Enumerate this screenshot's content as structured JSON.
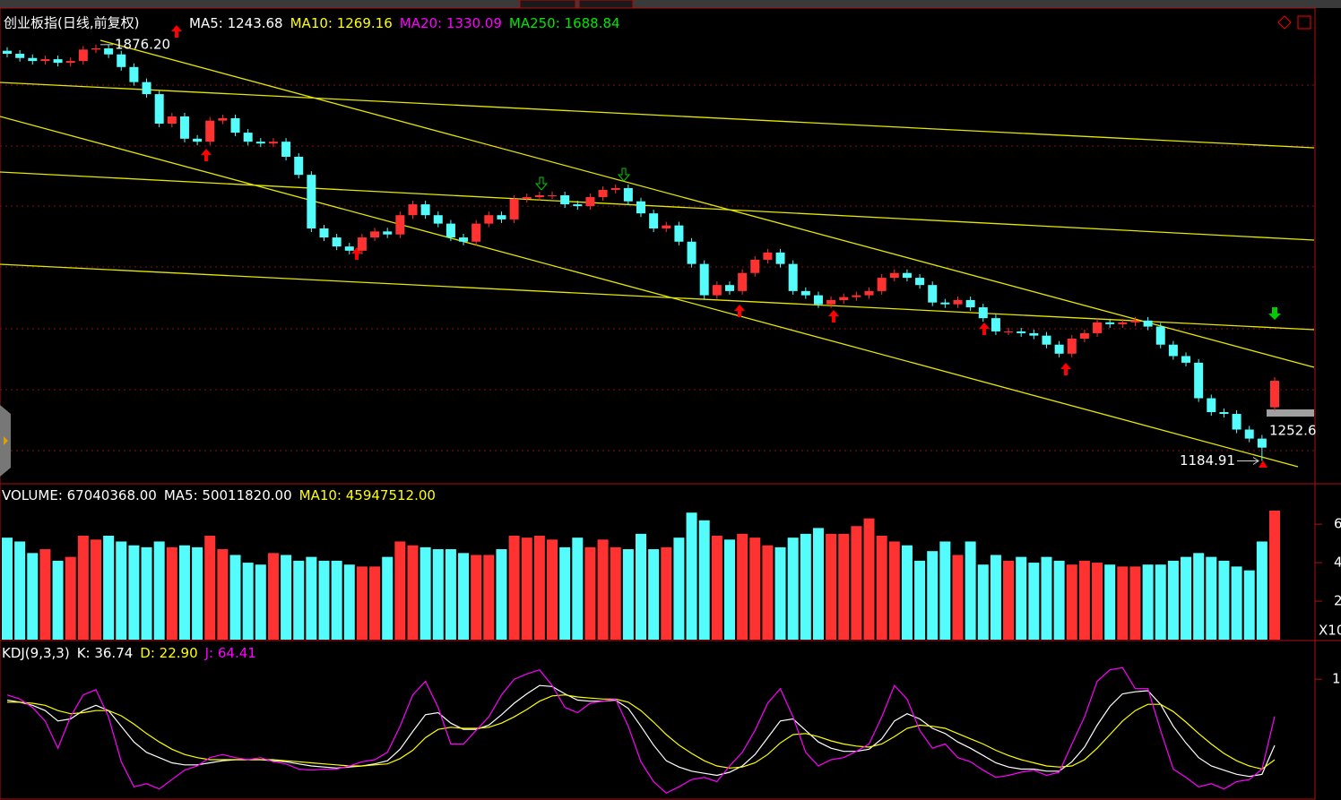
{
  "chart_data": [
    {
      "type": "candlestick",
      "title": "创业板指(日线,前复权)",
      "indicators": [
        {
          "label": "MA5: 1243.68",
          "color": "#ffffff"
        },
        {
          "label": "MA10: 1269.16",
          "color": "#ffff00"
        },
        {
          "label": "MA20: 1330.09",
          "color": "#ff00ff"
        },
        {
          "label": "MA250: 1688.84",
          "color": "#00e600"
        }
      ],
      "up_color": "#ff3232",
      "down_color": "#54fcfc",
      "ylim": [
        1147,
        1928
      ],
      "open": [
        1866,
        1861,
        1854,
        1849,
        1852,
        1846,
        1849,
        1868,
        1870,
        1860,
        1839,
        1814,
        1794,
        1745,
        1757,
        1720,
        1715,
        1750,
        1754,
        1730,
        1715,
        1712,
        1715,
        1690,
        1660,
        1571,
        1556,
        1541,
        1534,
        1556,
        1566,
        1561,
        1593,
        1611,
        1593,
        1579,
        1556,
        1549,
        1579,
        1593,
        1586,
        1620,
        1623,
        1626,
        1626,
        1611,
        1608,
        1623,
        1635,
        1638,
        1616,
        1596,
        1571,
        1576,
        1549,
        1512,
        1460,
        1477,
        1467,
        1497,
        1519,
        1531,
        1512,
        1467,
        1460,
        1445,
        1452,
        1457,
        1460,
        1467,
        1489,
        1497,
        1489,
        1477,
        1448,
        1445,
        1452,
        1440,
        1422,
        1400,
        1400,
        1397,
        1393,
        1378,
        1363,
        1388,
        1397,
        1415,
        1412,
        1415,
        1418,
        1408,
        1378,
        1359,
        1348,
        1289,
        1266,
        1263,
        1237,
        1222,
        1274
      ],
      "high": [
        1872,
        1867,
        1860,
        1858,
        1858,
        1855,
        1874,
        1876.2,
        1876,
        1866,
        1845,
        1820,
        1800,
        1763,
        1763,
        1726,
        1756,
        1760,
        1760,
        1736,
        1721,
        1721,
        1721,
        1696,
        1666,
        1577,
        1562,
        1547,
        1562,
        1572,
        1572,
        1599,
        1617,
        1617,
        1599,
        1585,
        1562,
        1585,
        1599,
        1599,
        1626,
        1629,
        1632,
        1632,
        1632,
        1617,
        1629,
        1641,
        1644,
        1644,
        1622,
        1602,
        1582,
        1582,
        1555,
        1518,
        1483,
        1483,
        1503,
        1525,
        1537,
        1537,
        1518,
        1473,
        1466,
        1458,
        1463,
        1466,
        1473,
        1495,
        1503,
        1503,
        1495,
        1483,
        1454,
        1458,
        1458,
        1446,
        1428,
        1406,
        1406,
        1403,
        1399,
        1384,
        1394,
        1403,
        1421,
        1421,
        1421,
        1424,
        1424,
        1414,
        1384,
        1365,
        1354,
        1295,
        1272,
        1269,
        1243,
        1228,
        1324
      ],
      "low": [
        1855,
        1848,
        1843,
        1843,
        1840,
        1840,
        1843,
        1862,
        1854,
        1833,
        1808,
        1788,
        1739,
        1739,
        1714,
        1709,
        1709,
        1744,
        1724,
        1709,
        1706,
        1706,
        1684,
        1654,
        1565,
        1550,
        1535,
        1528,
        1528,
        1550,
        1555,
        1555,
        1587,
        1587,
        1573,
        1550,
        1543,
        1543,
        1573,
        1580,
        1580,
        1614,
        1617,
        1620,
        1605,
        1602,
        1602,
        1617,
        1629,
        1610,
        1590,
        1565,
        1565,
        1543,
        1506,
        1454,
        1454,
        1461,
        1461,
        1491,
        1513,
        1506,
        1461,
        1454,
        1439,
        1439,
        1446,
        1451,
        1454,
        1461,
        1483,
        1483,
        1471,
        1442,
        1439,
        1439,
        1434,
        1416,
        1394,
        1394,
        1391,
        1387,
        1372,
        1357,
        1357,
        1382,
        1391,
        1406,
        1406,
        1409,
        1402,
        1372,
        1353,
        1342,
        1283,
        1260,
        1257,
        1231,
        1216,
        1184.91,
        1268
      ],
      "close": [
        1861,
        1854,
        1849,
        1852,
        1846,
        1849,
        1868,
        1870,
        1860,
        1839,
        1814,
        1794,
        1745,
        1757,
        1720,
        1715,
        1750,
        1754,
        1730,
        1715,
        1712,
        1715,
        1690,
        1660,
        1571,
        1556,
        1541,
        1534,
        1556,
        1566,
        1561,
        1593,
        1611,
        1593,
        1579,
        1556,
        1549,
        1579,
        1593,
        1586,
        1620,
        1623,
        1626,
        1626,
        1611,
        1608,
        1623,
        1635,
        1638,
        1616,
        1596,
        1571,
        1576,
        1549,
        1512,
        1460,
        1477,
        1467,
        1497,
        1519,
        1531,
        1512,
        1467,
        1460,
        1445,
        1452,
        1457,
        1460,
        1467,
        1489,
        1497,
        1489,
        1477,
        1448,
        1445,
        1452,
        1440,
        1422,
        1400,
        1400,
        1397,
        1393,
        1378,
        1363,
        1388,
        1397,
        1415,
        1412,
        1415,
        1418,
        1408,
        1378,
        1359,
        1348,
        1289,
        1266,
        1263,
        1237,
        1222,
        1207,
        1318
      ],
      "annotations": [
        {
          "value": 1876.2,
          "label": "1876.20"
        },
        {
          "value": 1184.91,
          "label": "1184.91"
        },
        {
          "value": 1252.6,
          "label": "1252.6"
        }
      ]
    },
    {
      "type": "bar",
      "indicators": [
        {
          "label": "VOLUME: 67040368.00",
          "color": "#ffffff"
        },
        {
          "label": "MA5: 50011820.00",
          "color": "#ffffff"
        },
        {
          "label": "MA10: 45947512.00",
          "color": "#ffff00"
        }
      ],
      "values": [
        5.3,
        5.1,
        4.5,
        4.7,
        4.1,
        4.3,
        5.4,
        5.2,
        5.4,
        5.1,
        4.9,
        4.8,
        5.1,
        4.8,
        4.9,
        4.8,
        5.4,
        4.7,
        4.4,
        4.0,
        3.9,
        4.5,
        4.4,
        4.1,
        4.3,
        4.1,
        4.1,
        3.9,
        3.8,
        3.8,
        4.3,
        5.1,
        4.9,
        4.8,
        4.7,
        4.7,
        4.5,
        4.4,
        4.4,
        4.7,
        5.4,
        5.3,
        5.4,
        5.2,
        4.8,
        5.3,
        4.8,
        5.2,
        4.8,
        4.7,
        5.5,
        4.7,
        4.8,
        5.3,
        6.6,
        6.2,
        5.4,
        5.2,
        5.5,
        5.3,
        4.9,
        4.8,
        5.3,
        5.5,
        5.8,
        5.5,
        5.5,
        5.9,
        6.3,
        5.4,
        5.1,
        4.9,
        4.1,
        4.6,
        5.1,
        4.4,
        5.1,
        3.9,
        4.4,
        4.1,
        4.3,
        4.0,
        4.3,
        4.1,
        3.9,
        4.1,
        4.0,
        3.9,
        3.8,
        3.8,
        3.9,
        3.9,
        4.1,
        4.3,
        4.5,
        4.3,
        4.1,
        3.8,
        3.6,
        5.1,
        6.704
      ],
      "ylim": [
        0,
        8.1
      ],
      "yticks": [
        2,
        4,
        6
      ],
      "unit_label": "X10"
    },
    {
      "type": "line",
      "indicators": [
        {
          "label": "KDJ(9,3,3)",
          "color": "#ffffff"
        },
        {
          "label": "K: 36.74",
          "color": "#ffffff"
        },
        {
          "label": "D: 22.90",
          "color": "#ffff00"
        },
        {
          "label": "J: 64.41",
          "color": "#ff00ff"
        }
      ],
      "ylim": [
        -13,
        137
      ],
      "yticks": [
        {
          "value": 100,
          "label": "1"
        }
      ],
      "series": [
        {
          "name": "K",
          "color": "#ffffff",
          "values": [
            80,
            78,
            75,
            70,
            60,
            62,
            70,
            75,
            70,
            55,
            40,
            30,
            25,
            20,
            18,
            18,
            20,
            22,
            23,
            23,
            23,
            22,
            21,
            19,
            17,
            16,
            15,
            16,
            17,
            19,
            22,
            33,
            50,
            66,
            68,
            58,
            52,
            52,
            56,
            66,
            77,
            86,
            94,
            93,
            86,
            80,
            79,
            79,
            80,
            72,
            55,
            37,
            22,
            16,
            12,
            10,
            8,
            11,
            17,
            28,
            44,
            60,
            62,
            51,
            40,
            34,
            31,
            31,
            33,
            43,
            60,
            67,
            62,
            53,
            48,
            40,
            34,
            27,
            20,
            16,
            14,
            14,
            12,
            12,
            21,
            35,
            56,
            74,
            86,
            88,
            89,
            76,
            55,
            39,
            25,
            17,
            13,
            9,
            7,
            9,
            36.74
          ]
        },
        {
          "name": "D",
          "color": "#ffff00",
          "values": [
            78,
            78,
            77,
            75,
            70,
            67,
            68,
            70,
            70,
            65,
            57,
            48,
            40,
            33,
            28,
            25,
            23,
            23,
            23,
            23,
            23,
            23,
            22,
            21,
            20,
            19,
            18,
            17,
            17,
            18,
            19,
            24,
            32,
            44,
            52,
            54,
            53,
            53,
            54,
            58,
            64,
            71,
            79,
            84,
            85,
            83,
            82,
            81,
            81,
            78,
            70,
            59,
            47,
            37,
            29,
            22,
            17,
            15,
            16,
            20,
            28,
            39,
            47,
            48,
            45,
            41,
            38,
            36,
            35,
            38,
            45,
            53,
            56,
            55,
            53,
            48,
            43,
            38,
            32,
            27,
            23,
            20,
            17,
            16,
            17,
            23,
            34,
            47,
            60,
            70,
            76,
            76,
            69,
            59,
            48,
            38,
            29,
            22,
            17,
            14,
            22.9
          ]
        },
        {
          "name": "J",
          "color": "#ff00ff",
          "values": [
            85,
            81,
            73,
            60,
            34,
            64,
            85,
            90,
            64,
            21,
            -3,
            0,
            -5,
            4,
            13,
            17,
            25,
            28,
            25,
            23,
            25,
            21,
            19,
            14,
            13,
            14,
            14,
            17,
            21,
            23,
            30,
            55,
            85,
            98,
            73,
            38,
            38,
            51,
            64,
            85,
            100,
            105,
            109,
            94,
            73,
            68,
            77,
            79,
            81,
            55,
            21,
            2,
            -9,
            -3,
            4,
            6,
            2,
            17,
            30,
            51,
            77,
            91,
            64,
            30,
            17,
            23,
            25,
            31,
            38,
            64,
            94,
            81,
            51,
            34,
            38,
            25,
            21,
            13,
            6,
            8,
            11,
            13,
            8,
            11,
            38,
            64,
            98,
            109,
            111,
            91,
            91,
            51,
            14,
            6,
            -3,
            0,
            -5,
            2,
            4,
            14,
            64.41
          ]
        }
      ]
    }
  ]
}
